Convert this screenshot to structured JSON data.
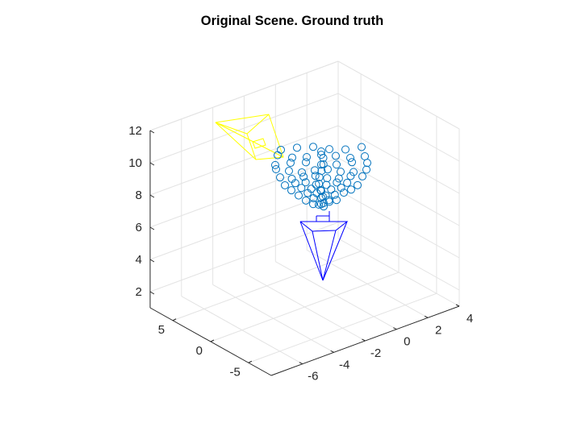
{
  "chart_data": {
    "type": "scatter",
    "title": "Original Scene. Ground truth",
    "xlabel": "",
    "ylabel": "",
    "zlabel": "",
    "x_ticks": [
      "-6",
      "-4",
      "-2",
      "0",
      "2",
      "4"
    ],
    "y_ticks": [
      "5",
      "0",
      "-5"
    ],
    "z_ticks": [
      "2",
      "4",
      "6",
      "8",
      "10",
      "12"
    ],
    "grid": true,
    "view": "3d",
    "colors": {
      "points": "#0072bd",
      "camera_1": "#ffff00",
      "camera_2": "#0000ff",
      "grid": "#e3e3e3",
      "axes": "#262626"
    },
    "point_marker": "circle"
  }
}
